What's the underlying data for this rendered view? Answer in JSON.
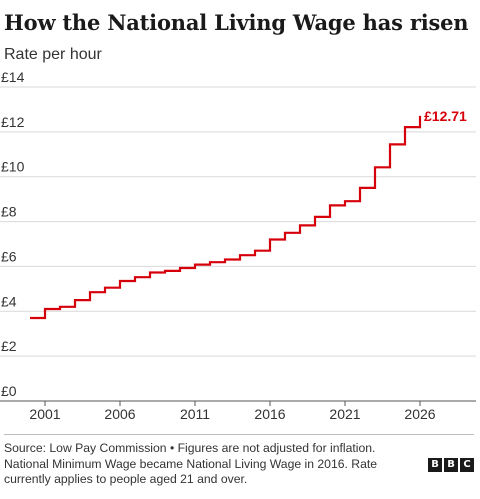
{
  "header": {
    "title": "How the National Living Wage has risen",
    "subtitle": "Rate per hour"
  },
  "chart_data": {
    "type": "line",
    "step": true,
    "ylabel": "Rate per hour",
    "ylim": [
      0,
      14
    ],
    "xlim": [
      2000,
      2026
    ],
    "y_ticks": [
      0,
      2,
      4,
      6,
      8,
      10,
      12,
      14
    ],
    "y_tick_labels": [
      "£0",
      "£2",
      "£4",
      "£6",
      "£8",
      "£10",
      "£12",
      "£14"
    ],
    "x_ticks": [
      2001,
      2006,
      2011,
      2016,
      2021,
      2026
    ],
    "x_tick_labels": [
      "2001",
      "2006",
      "2011",
      "2016",
      "2021",
      "2026"
    ],
    "grid": "horizontal",
    "line_color": "#d6000b",
    "series": [
      {
        "x": [
          2000,
          2001,
          2002,
          2003,
          2004,
          2005,
          2006,
          2007,
          2008,
          2009,
          2010,
          2011,
          2012,
          2013,
          2014,
          2015,
          2016,
          2017,
          2018,
          2019,
          2020,
          2021,
          2022,
          2023,
          2024,
          2025
        ],
        "values": [
          3.7,
          4.1,
          4.2,
          4.5,
          4.85,
          5.05,
          5.35,
          5.52,
          5.73,
          5.8,
          5.93,
          6.08,
          6.19,
          6.31,
          6.5,
          6.7,
          7.2,
          7.5,
          7.83,
          8.21,
          8.72,
          8.91,
          9.5,
          10.42,
          11.44,
          12.21
        ],
        "end_value": 12.71,
        "end_label": "£12.71"
      }
    ]
  },
  "footer": {
    "source": "Source: Low Pay Commission • Figures are not adjusted for inflation.",
    "note_line1": "National Minimum Wage became National Living Wage in 2016. Rate",
    "note_line2": "currently applies to people aged 21 and over.",
    "logo_letters": [
      "B",
      "B",
      "C"
    ]
  }
}
